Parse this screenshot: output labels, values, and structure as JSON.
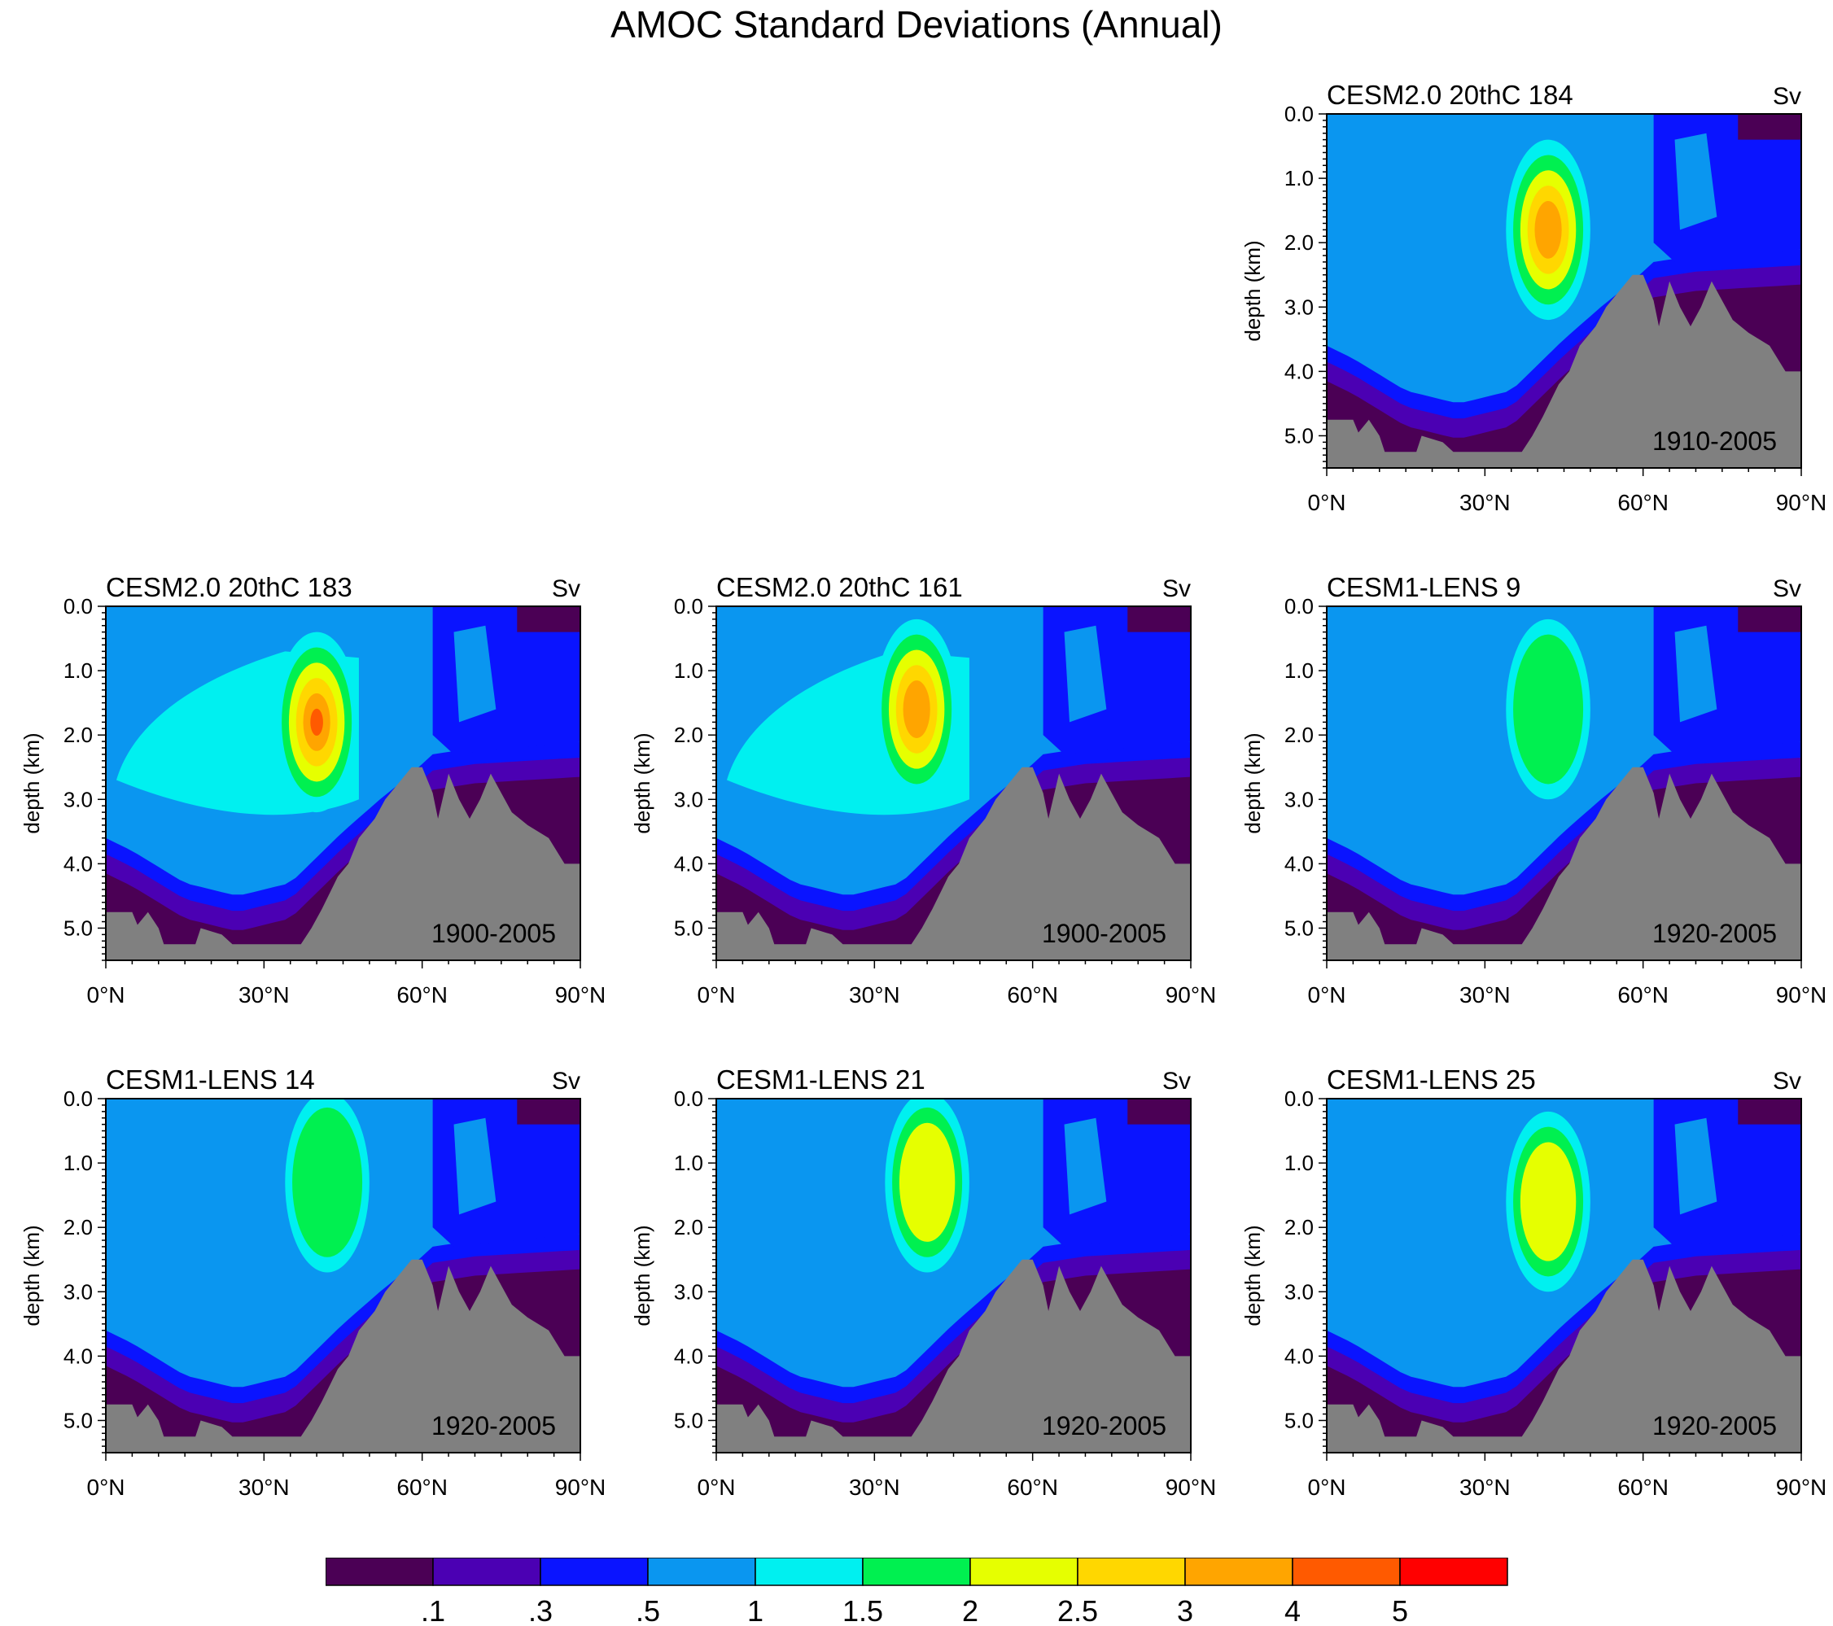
{
  "title": "AMOC Standard Deviations (Annual)",
  "colors": {
    "land": "#808080",
    "levels": [
      "#4b0055",
      "#4b00b3",
      "#0a14ff",
      "#0a96f0",
      "#00f0f0",
      "#00f050",
      "#e6ff00",
      "#ffd700",
      "#ffa500",
      "#ff5a00",
      "#ff0000"
    ]
  },
  "chart_data": [
    {
      "type": "heatmap",
      "title": "CESM2.0 20thC 184",
      "units": "Sv",
      "period": "1910-2005",
      "ylabel": "depth (km)",
      "xticks": [
        "0°N",
        "30°N",
        "60°N",
        "90°N"
      ],
      "yticks": [
        "0.0",
        "1.0",
        "2.0",
        "3.0",
        "4.0",
        "5.0"
      ],
      "xlim": [
        0,
        90
      ],
      "ylim": [
        0,
        5.5
      ],
      "core": {
        "lat": 42,
        "depth": 1.8,
        "max_sv": 3
      }
    },
    {
      "type": "heatmap",
      "title": "CESM2.0 20thC 183",
      "units": "Sv",
      "period": "1900-2005",
      "ylabel": "depth (km)",
      "xticks": [
        "0°N",
        "30°N",
        "60°N",
        "90°N"
      ],
      "yticks": [
        "0.0",
        "1.0",
        "2.0",
        "3.0",
        "4.0",
        "5.0"
      ],
      "xlim": [
        0,
        90
      ],
      "ylim": [
        0,
        5.5
      ],
      "core": {
        "lat": 40,
        "depth": 1.8,
        "max_sv": 4
      }
    },
    {
      "type": "heatmap",
      "title": "CESM2.0 20thC 161",
      "units": "Sv",
      "period": "1900-2005",
      "ylabel": "depth (km)",
      "xticks": [
        "0°N",
        "30°N",
        "60°N",
        "90°N"
      ],
      "yticks": [
        "0.0",
        "1.0",
        "2.0",
        "3.0",
        "4.0",
        "5.0"
      ],
      "xlim": [
        0,
        90
      ],
      "ylim": [
        0,
        5.5
      ],
      "core": {
        "lat": 38,
        "depth": 1.6,
        "max_sv": 3
      }
    },
    {
      "type": "heatmap",
      "title": "CESM1-LENS 9",
      "units": "Sv",
      "period": "1920-2005",
      "ylabel": "depth (km)",
      "xticks": [
        "0°N",
        "30°N",
        "60°N",
        "90°N"
      ],
      "yticks": [
        "0.0",
        "1.0",
        "2.0",
        "3.0",
        "4.0",
        "5.0"
      ],
      "xlim": [
        0,
        90
      ],
      "ylim": [
        0,
        5.5
      ],
      "core": {
        "lat": 42,
        "depth": 1.6,
        "max_sv": 1.5
      }
    },
    {
      "type": "heatmap",
      "title": "CESM1-LENS 14",
      "units": "Sv",
      "period": "1920-2005",
      "ylabel": "depth (km)",
      "xticks": [
        "0°N",
        "30°N",
        "60°N",
        "90°N"
      ],
      "yticks": [
        "0.0",
        "1.0",
        "2.0",
        "3.0",
        "4.0",
        "5.0"
      ],
      "xlim": [
        0,
        90
      ],
      "ylim": [
        0,
        5.5
      ],
      "core": {
        "lat": 42,
        "depth": 1.3,
        "max_sv": 1.5
      }
    },
    {
      "type": "heatmap",
      "title": "CESM1-LENS 21",
      "units": "Sv",
      "period": "1920-2005",
      "ylabel": "depth (km)",
      "xticks": [
        "0°N",
        "30°N",
        "60°N",
        "90°N"
      ],
      "yticks": [
        "0.0",
        "1.0",
        "2.0",
        "3.0",
        "4.0",
        "5.0"
      ],
      "xlim": [
        0,
        90
      ],
      "ylim": [
        0,
        5.5
      ],
      "core": {
        "lat": 40,
        "depth": 1.3,
        "max_sv": 2
      }
    },
    {
      "type": "heatmap",
      "title": "CESM1-LENS 25",
      "units": "Sv",
      "period": "1920-2005",
      "ylabel": "depth (km)",
      "xticks": [
        "0°N",
        "30°N",
        "60°N",
        "90°N"
      ],
      "yticks": [
        "0.0",
        "1.0",
        "2.0",
        "3.0",
        "4.0",
        "5.0"
      ],
      "xlim": [
        0,
        90
      ],
      "ylim": [
        0,
        5.5
      ],
      "core": {
        "lat": 42,
        "depth": 1.6,
        "max_sv": 2
      }
    }
  ],
  "colorbar": {
    "labels": [
      ".1",
      ".3",
      ".5",
      "1",
      "1.5",
      "2",
      "2.5",
      "3",
      "4",
      "5"
    ]
  }
}
